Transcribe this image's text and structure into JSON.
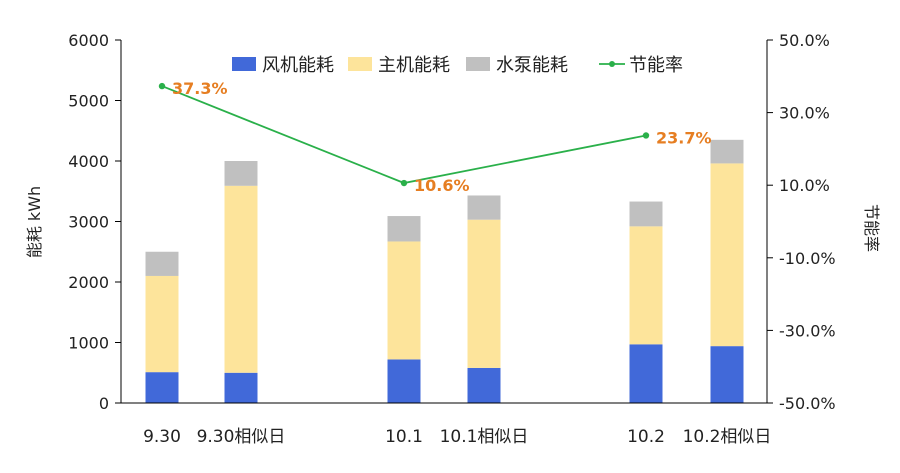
{
  "chart_data": {
    "type": "bar",
    "stacked": true,
    "categories": [
      "9.30",
      "9.30相似日",
      "10.1",
      "10.1相似日",
      "10.2",
      "10.2相似日"
    ],
    "series": [
      {
        "name": "风机能耗",
        "type": "bar",
        "axis": "left",
        "color": "#4169d9",
        "values": [
          510,
          500,
          720,
          580,
          970,
          940
        ]
      },
      {
        "name": "主机能耗",
        "type": "bar",
        "axis": "left",
        "color": "#fde49b",
        "values": [
          1590,
          3090,
          1950,
          2450,
          1950,
          3020
        ]
      },
      {
        "name": "水泵能耗",
        "type": "bar",
        "axis": "left",
        "color": "#c0c0c0",
        "values": [
          400,
          410,
          420,
          400,
          410,
          390
        ]
      },
      {
        "name": "节能率",
        "type": "line",
        "axis": "right",
        "color": "#2ab04a",
        "points": [
          {
            "category": "9.30",
            "value": 37.3,
            "label": "37.3%"
          },
          {
            "category": "10.1",
            "value": 10.6,
            "label": "10.6%"
          },
          {
            "category": "10.2",
            "value": 23.7,
            "label": "23.7%"
          }
        ]
      }
    ],
    "ylabel": "能耗 kWh",
    "y2label": "节能率",
    "ylim": [
      0,
      6000
    ],
    "y2lim": [
      -50,
      50
    ],
    "yticks": [
      "0",
      "1000",
      "2000",
      "3000",
      "4000",
      "5000",
      "6000"
    ],
    "y2ticks": [
      "-50.0%",
      "-30.0%",
      "-10.0%",
      "10.0%",
      "30.0%",
      "50.0%"
    ],
    "legend_position": "top",
    "grid": false,
    "data_label_color": "#e67e22"
  }
}
